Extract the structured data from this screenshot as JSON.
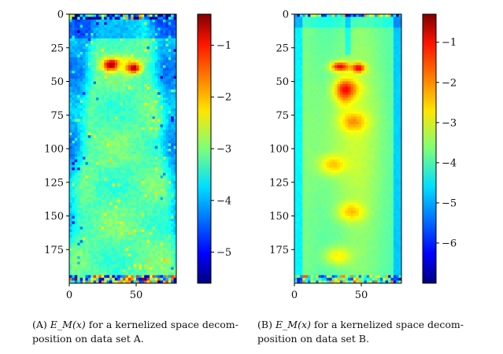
{
  "chart_data": [
    {
      "type": "heatmap",
      "panel": "A",
      "x_ticks": [
        0,
        50
      ],
      "y_ticks": [
        0,
        25,
        50,
        75,
        100,
        125,
        150,
        175
      ],
      "xlim": [
        0,
        80
      ],
      "ylim": [
        200,
        0
      ],
      "colorbar_range": [
        -5.6,
        -0.4
      ],
      "colorbar_ticks": [
        "−1",
        "−2",
        "−3",
        "−4",
        "−5"
      ],
      "colorbar_tick_values": [
        -1,
        -2,
        -3,
        -4,
        -5
      ],
      "colormap": "jet",
      "dominant_value": -3.2,
      "edge_value": -4.0,
      "hotspots_y": [
        38,
        40
      ],
      "hotspot_value": -0.6
    },
    {
      "type": "heatmap",
      "panel": "B",
      "x_ticks": [
        0,
        50
      ],
      "y_ticks": [
        0,
        25,
        50,
        75,
        100,
        125,
        150,
        175
      ],
      "xlim": [
        0,
        80
      ],
      "ylim": [
        200,
        0
      ],
      "colorbar_range": [
        -7.0,
        -0.3
      ],
      "colorbar_ticks": [
        "−1",
        "−2",
        "−3",
        "−4",
        "−5",
        "−6"
      ],
      "colorbar_tick_values": [
        -1,
        -2,
        -3,
        -4,
        -5,
        -6
      ],
      "colormap": "jet",
      "dominant_value": -3.8,
      "edge_value": -4.6,
      "vortex_centers_y": [
        55,
        80,
        112,
        147,
        180
      ],
      "hotspot_value": -0.7
    }
  ],
  "captions": {
    "a": {
      "label": "(A)",
      "math": "E_M(x)",
      "line1_rest": " for a kernelized space decom-",
      "line2": "position on data set A."
    },
    "b": {
      "label": "(B)",
      "math": "E_M(x)",
      "line1_rest": " for a kernelized space decom-",
      "line2": "position on data set B."
    }
  }
}
